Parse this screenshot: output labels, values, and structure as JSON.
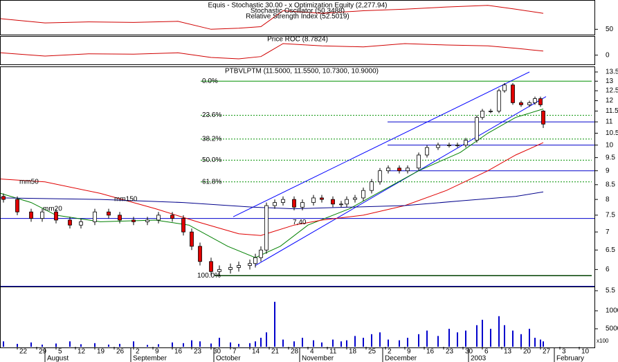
{
  "chart_data": [
    {
      "type": "line",
      "titles": [
        "Equis - Stochastic 30.00 - x Optimization Equity (2,277.94)",
        "Stochastic Oscillator (50.3488)",
        "Relative Strength Index (52.5019)"
      ],
      "ylim": [
        40,
        100
      ],
      "yticks": [
        50
      ],
      "series": [
        {
          "color": "#d00000",
          "x": [
            -6,
            10,
            26,
            42,
            58,
            70,
            80,
            88,
            96,
            110,
            125,
            140,
            155,
            170,
            180,
            190
          ],
          "values": [
            70,
            62,
            64,
            63,
            65,
            50,
            52,
            55,
            85,
            80,
            85,
            88,
            92,
            95,
            88,
            80
          ]
        }
      ]
    },
    {
      "type": "line",
      "titles": [
        "Price ROC (8.7824)"
      ],
      "ylim": [
        -20,
        40
      ],
      "yticks": [
        0
      ],
      "series": [
        {
          "color": "#d00000",
          "x": [
            -6,
            10,
            26,
            42,
            58,
            70,
            80,
            88,
            96,
            110,
            125,
            140,
            155,
            170,
            180,
            190
          ],
          "values": [
            5,
            -2,
            3,
            2,
            5,
            -5,
            -8,
            -3,
            25,
            20,
            18,
            25,
            22,
            20,
            15,
            8.78
          ]
        }
      ]
    },
    {
      "type": "candlestick",
      "title": "PTBVLPTM (11.5000, 11.5500, 10.7300, 10.9000)",
      "log": true,
      "xlim": [
        -6.25,
        208.75
      ],
      "xticks": [
        {
          "value": 0,
          "label": "22"
        },
        {
          "value": 7,
          "label": "29"
        },
        {
          "value": 14,
          "label": "5"
        },
        {
          "value": 21,
          "label": "12"
        },
        {
          "value": 28,
          "label": "19"
        },
        {
          "value": 35,
          "label": "26"
        },
        {
          "value": 42,
          "label": "2"
        },
        {
          "value": 49,
          "label": "9"
        },
        {
          "value": 56,
          "label": "16"
        },
        {
          "value": 63,
          "label": "23"
        },
        {
          "value": 70,
          "label": "30"
        },
        {
          "value": 77,
          "label": "7"
        },
        {
          "value": 84,
          "label": "14"
        },
        {
          "value": 91,
          "label": "21"
        },
        {
          "value": 98,
          "label": "28"
        },
        {
          "value": 105,
          "label": "4"
        },
        {
          "value": 112,
          "label": "11"
        },
        {
          "value": 119,
          "label": "18"
        },
        {
          "value": 126,
          "label": "25"
        },
        {
          "value": 133,
          "label": "2"
        },
        {
          "value": 140,
          "label": "9"
        },
        {
          "value": 147,
          "label": "16"
        },
        {
          "value": 154,
          "label": "23"
        },
        {
          "value": 161,
          "label": "30"
        },
        {
          "value": 168,
          "label": "6"
        },
        {
          "value": 175,
          "label": "13"
        },
        {
          "value": 182,
          "label": "20"
        },
        {
          "value": 189,
          "label": "27"
        },
        {
          "value": 196,
          "label": "3"
        },
        {
          "value": 203,
          "label": "10"
        }
      ],
      "month_ticks": [
        {
          "value": 10,
          "label": "August"
        },
        {
          "value": 41,
          "label": "September"
        },
        {
          "value": 71,
          "label": "October"
        },
        {
          "value": 102,
          "label": "November"
        },
        {
          "value": 132,
          "label": "December"
        },
        {
          "value": 163,
          "label": "2003"
        },
        {
          "value": 194,
          "label": "February"
        }
      ],
      "ylim": [
        5.5,
        13.5
      ],
      "yticks": [
        5.5,
        6.0,
        6.5,
        7.0,
        7.5,
        8.0,
        8.5,
        9.0,
        9.5,
        10.0,
        10.5,
        11.0,
        11.5,
        12.0,
        12.5,
        13.0,
        13.5
      ],
      "x": [
        -5,
        0,
        5,
        9,
        14,
        19,
        23,
        28,
        33,
        37,
        42,
        47,
        51,
        56,
        60,
        63,
        66,
        70,
        73,
        77,
        80,
        84,
        86,
        88,
        90,
        93,
        96,
        100,
        103,
        107,
        110,
        114,
        117,
        119,
        122,
        125,
        128,
        131,
        134,
        138,
        141,
        145,
        148,
        152,
        156,
        159,
        162,
        166,
        168,
        171,
        174,
        176,
        179,
        182,
        185,
        187,
        189,
        190
      ],
      "open": [
        8.1,
        8.0,
        7.6,
        7.4,
        7.6,
        7.35,
        7.2,
        7.3,
        7.6,
        7.5,
        7.35,
        7.3,
        7.35,
        7.5,
        7.4,
        7.0,
        6.6,
        6.2,
        5.95,
        6.0,
        6.05,
        6.1,
        6.15,
        6.3,
        6.5,
        7.8,
        7.9,
        8.0,
        7.75,
        7.9,
        8.05,
        8.0,
        7.85,
        7.85,
        8.0,
        8.05,
        8.3,
        8.6,
        9.0,
        9.1,
        9.0,
        9.1,
        9.6,
        9.9,
        10.0,
        10.0,
        10.0,
        10.2,
        11.2,
        11.5,
        11.5,
        12.5,
        12.8,
        11.9,
        11.8,
        11.9,
        12.1,
        11.5
      ],
      "high": [
        8.2,
        8.1,
        7.7,
        7.7,
        7.7,
        7.45,
        7.4,
        7.7,
        7.7,
        7.6,
        7.45,
        7.45,
        7.6,
        7.6,
        7.5,
        7.1,
        6.7,
        6.3,
        6.1,
        6.15,
        6.2,
        6.25,
        6.4,
        6.6,
        7.9,
        8.0,
        8.1,
        8.1,
        8.0,
        8.15,
        8.15,
        8.1,
        7.95,
        8.1,
        8.15,
        8.4,
        8.7,
        9.1,
        9.2,
        9.2,
        9.2,
        9.7,
        10.0,
        10.1,
        10.1,
        10.1,
        10.3,
        11.3,
        11.6,
        11.6,
        12.6,
        12.9,
        12.9,
        12.0,
        12.0,
        12.2,
        12.2,
        11.55
      ],
      "low": [
        7.9,
        7.5,
        7.3,
        7.3,
        7.25,
        7.1,
        7.1,
        7.2,
        7.4,
        7.25,
        7.2,
        7.2,
        7.25,
        7.3,
        6.9,
        6.5,
        6.1,
        5.85,
        5.85,
        5.9,
        5.95,
        6.0,
        6.05,
        6.2,
        6.4,
        7.7,
        7.8,
        7.65,
        7.65,
        7.8,
        7.9,
        7.75,
        7.75,
        7.75,
        7.9,
        7.95,
        8.2,
        8.5,
        8.9,
        8.9,
        8.9,
        9.0,
        9.5,
        9.8,
        9.9,
        9.9,
        9.9,
        10.1,
        11.1,
        11.4,
        11.4,
        12.4,
        11.8,
        11.7,
        11.7,
        11.8,
        11.7,
        10.73
      ],
      "close": [
        8.0,
        7.6,
        7.4,
        7.6,
        7.35,
        7.2,
        7.3,
        7.6,
        7.5,
        7.35,
        7.3,
        7.35,
        7.5,
        7.4,
        7.0,
        6.6,
        6.2,
        5.95,
        6.0,
        6.05,
        6.1,
        6.15,
        6.3,
        6.5,
        7.8,
        7.9,
        8.0,
        7.75,
        7.9,
        8.05,
        8.0,
        7.85,
        7.85,
        8.0,
        8.05,
        8.3,
        8.6,
        9.0,
        9.1,
        9.0,
        9.1,
        9.6,
        9.9,
        10.0,
        10.0,
        10.0,
        10.2,
        11.2,
        11.5,
        11.5,
        12.5,
        12.8,
        11.9,
        11.8,
        11.9,
        12.1,
        11.8,
        10.9
      ],
      "up_color": "#ffffff",
      "down_color": "#e00000",
      "moving_averages": [
        {
          "name": "mm20",
          "color": "#008000",
          "x": [
            -6,
            5,
            14,
            30,
            50,
            62,
            76,
            86,
            95,
            105,
            120,
            130,
            145,
            160,
            170,
            180,
            190
          ],
          "values": [
            8.2,
            7.9,
            7.5,
            7.3,
            7.35,
            7.2,
            6.6,
            6.3,
            6.6,
            7.2,
            7.7,
            8.2,
            9.0,
            9.7,
            10.5,
            11.2,
            11.6
          ]
        },
        {
          "name": "mm50",
          "color": "#e00000",
          "x": [
            -6,
            10,
            30,
            50,
            65,
            80,
            88,
            100,
            110,
            125,
            140,
            155,
            170,
            180,
            190
          ],
          "values": [
            8.7,
            8.6,
            8.2,
            7.7,
            7.3,
            6.95,
            6.9,
            7.2,
            7.35,
            7.5,
            7.8,
            8.3,
            9.0,
            9.6,
            10.1
          ]
        },
        {
          "name": "mm150",
          "color": "#00008b",
          "x": [
            -6,
            30,
            60,
            85,
            100,
            120,
            140,
            160,
            180,
            190
          ],
          "values": [
            8.05,
            8.0,
            7.9,
            7.75,
            7.7,
            7.75,
            7.8,
            7.95,
            8.1,
            8.25
          ]
        }
      ],
      "fibonacci": [
        {
          "value": 13.0,
          "label": "0.0%"
        },
        {
          "value": 11.3,
          "label": "23.6%"
        },
        {
          "value": 10.25,
          "label": "38.2%"
        },
        {
          "value": 9.4,
          "label": "50.0%"
        },
        {
          "value": 8.6,
          "label": "61.8%"
        },
        {
          "value": 5.85,
          "label": "100.0%"
        }
      ],
      "levels": [
        {
          "value": 7.4,
          "label": "7,40"
        },
        9.0,
        10.0,
        11.0,
        5.6
      ],
      "trendlines": [
        {
          "x": [
            78,
            185
          ],
          "values": [
            7.45,
            13.5
          ]
        },
        {
          "x": [
            86,
            191
          ],
          "values": [
            6.1,
            12.2
          ]
        }
      ]
    },
    {
      "type": "bar",
      "unit_label": "x100",
      "color": "#0000cc",
      "ylim": [
        0,
        15000
      ],
      "yticks": [
        5000,
        10000
      ],
      "values": [
        1500,
        800,
        1200,
        600,
        900,
        1500,
        700,
        1000,
        600,
        800,
        1500,
        500,
        700,
        1200,
        1000,
        1800,
        1500,
        900,
        2500,
        1200,
        800,
        1000,
        1500,
        2500,
        4000,
        12500,
        2000,
        1500,
        2500,
        1800,
        1200,
        2000,
        1500,
        1800,
        3000,
        2500,
        3500,
        4000,
        2000,
        1800,
        2500,
        3500,
        4500,
        3000,
        5000,
        4000,
        4500,
        6000,
        7500,
        5000,
        8500,
        6000,
        4500,
        3500,
        5000,
        2500,
        2000,
        1500
      ]
    }
  ]
}
